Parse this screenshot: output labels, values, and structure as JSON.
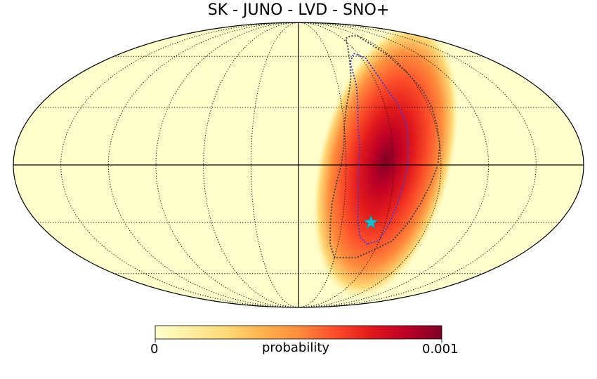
{
  "chart_data": {
    "type": "heatmap",
    "projection": "mollweide",
    "title": "SK - JUNO - LVD - SNO+",
    "colorbar": {
      "label": "probability",
      "min_label": "0",
      "max_label": "0.001",
      "min": 0,
      "max": 0.001,
      "colormap": [
        "#ffffcc",
        "#ffeda0",
        "#fed976",
        "#feb24c",
        "#fd8d3c",
        "#fc4e2a",
        "#e31a1c",
        "#bd0026",
        "#800026"
      ]
    },
    "graticule": {
      "meridians_deg": [
        -150,
        -120,
        -90,
        -60,
        -30,
        0,
        30,
        60,
        90,
        120,
        150
      ],
      "parallels_deg": [
        -60,
        -30,
        0,
        30,
        60
      ]
    },
    "probability_peak": {
      "lon_deg": -55,
      "lat_deg": 2,
      "value": 0.001
    },
    "marker": {
      "type": "star",
      "lon_deg": -50,
      "lat_deg": -30,
      "color": "#17becf"
    },
    "contours": [
      {
        "name": "inner",
        "color": "#4040d0",
        "points": [
          [
            -52,
            -42
          ],
          [
            -45,
            -38
          ],
          [
            -41,
            -30
          ],
          [
            -39,
            -20
          ],
          [
            -38,
            -10
          ],
          [
            -38,
            0
          ],
          [
            -39,
            10
          ],
          [
            -39,
            20
          ],
          [
            -41,
            30
          ],
          [
            -44,
            42
          ],
          [
            -47,
            56
          ],
          [
            -56,
            62
          ],
          [
            -64,
            59
          ],
          [
            -64,
            50
          ],
          [
            -66,
            40
          ],
          [
            -70,
            30
          ],
          [
            -71,
            20
          ],
          [
            -70,
            10
          ],
          [
            -69,
            0
          ],
          [
            -67,
            -10
          ],
          [
            -65,
            -20
          ],
          [
            -63,
            -30
          ],
          [
            -60,
            -40
          ]
        ]
      },
      {
        "name": "outer",
        "color": "#444444",
        "points": [
          [
            -30,
            -50
          ],
          [
            -24,
            -42
          ],
          [
            -22,
            -30
          ],
          [
            -22,
            -20
          ],
          [
            -24,
            -10
          ],
          [
            -27,
            0
          ],
          [
            -29,
            10
          ],
          [
            -30,
            20
          ],
          [
            -33,
            30
          ],
          [
            -38,
            40
          ],
          [
            -42,
            47
          ],
          [
            -48,
            58
          ],
          [
            -55,
            66
          ],
          [
            -65,
            73
          ],
          [
            -78,
            75
          ],
          [
            -88,
            75
          ],
          [
            -88,
            62
          ],
          [
            -90,
            50
          ],
          [
            -92,
            40
          ],
          [
            -92,
            30
          ],
          [
            -91,
            20
          ],
          [
            -90,
            10
          ],
          [
            -88,
            0
          ],
          [
            -84,
            -10
          ],
          [
            -80,
            -20
          ],
          [
            -76,
            -30
          ],
          [
            -70,
            -40
          ],
          [
            -60,
            -45
          ],
          [
            -48,
            -50
          ],
          [
            -38,
            -50
          ]
        ]
      }
    ]
  }
}
